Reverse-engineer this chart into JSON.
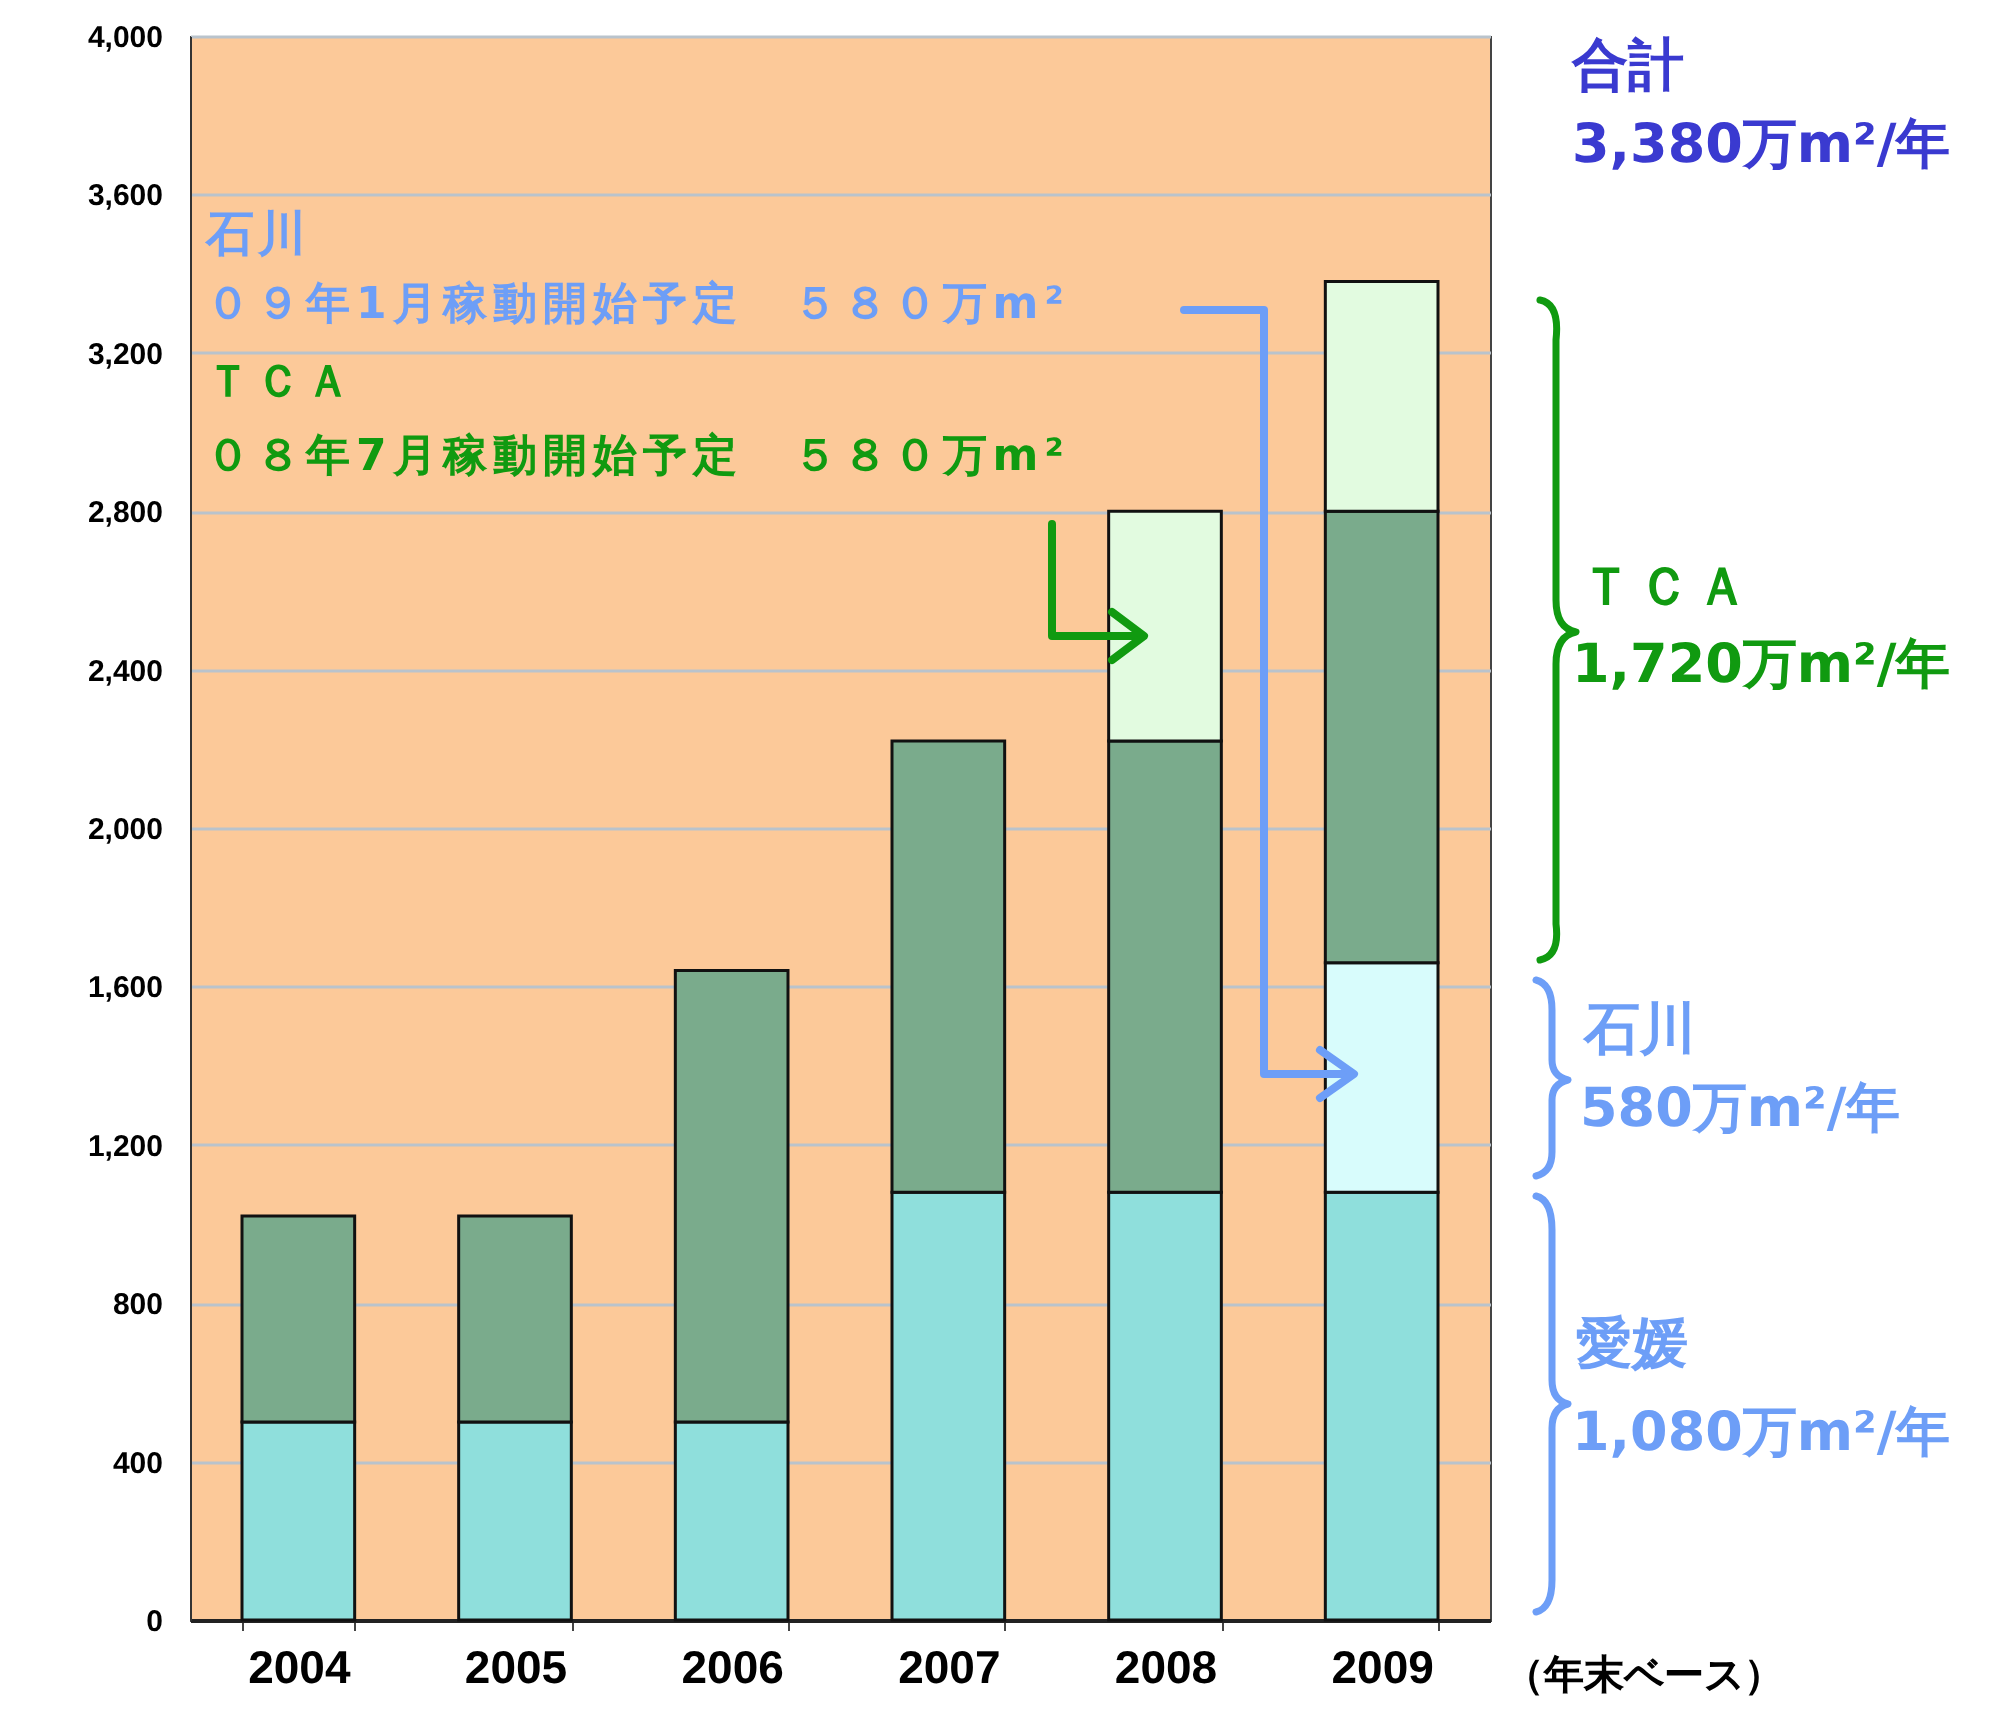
{
  "chart_data": {
    "type": "bar",
    "stacked": true,
    "title": "合計",
    "subtitle": "3,380万m²/年",
    "categories": [
      "2004",
      "2005",
      "2006",
      "2007",
      "2008",
      "2009"
    ],
    "series": [
      {
        "color": "#8fdfdc",
        "values": [
          500,
          500,
          500,
          1080,
          1080,
          1080
        ]
      },
      {
        "color": "#d8fcfc",
        "values": [
          null,
          null,
          null,
          null,
          null,
          580
        ]
      },
      {
        "color": "#7aab8c",
        "values": [
          520,
          520,
          1140,
          1140,
          1140,
          1140
        ]
      },
      {
        "color": "#e2fbe0",
        "values": [
          null,
          null,
          null,
          null,
          580,
          580
        ]
      }
    ],
    "ylim": [
      0,
      4000
    ],
    "yticks": [
      0,
      400,
      800,
      {
        "value": 1200,
        "label": "1,200"
      },
      {
        "value": 1600,
        "label": "1,600"
      },
      {
        "value": 2000,
        "label": "2,000"
      },
      {
        "value": 2400,
        "label": "2,400"
      },
      {
        "value": 2800,
        "label": "2,800"
      },
      {
        "value": 3200,
        "label": "3,200"
      },
      {
        "value": 3600,
        "label": "3,600"
      },
      {
        "value": 4000,
        "label": "4,000"
      }
    ],
    "grid": "y",
    "annotations": [
      "石川",
      "０９年1月稼動開始予定　５８０万m²",
      "ＴＣＡ",
      "０８年7月稼動開始予定　５８０万m²",
      "ＴＣＡ",
      "1,720万m²/年",
      "石川",
      "580万m²/年",
      "愛媛",
      "1,080万m²/年",
      "（年末ベース）"
    ]
  }
}
